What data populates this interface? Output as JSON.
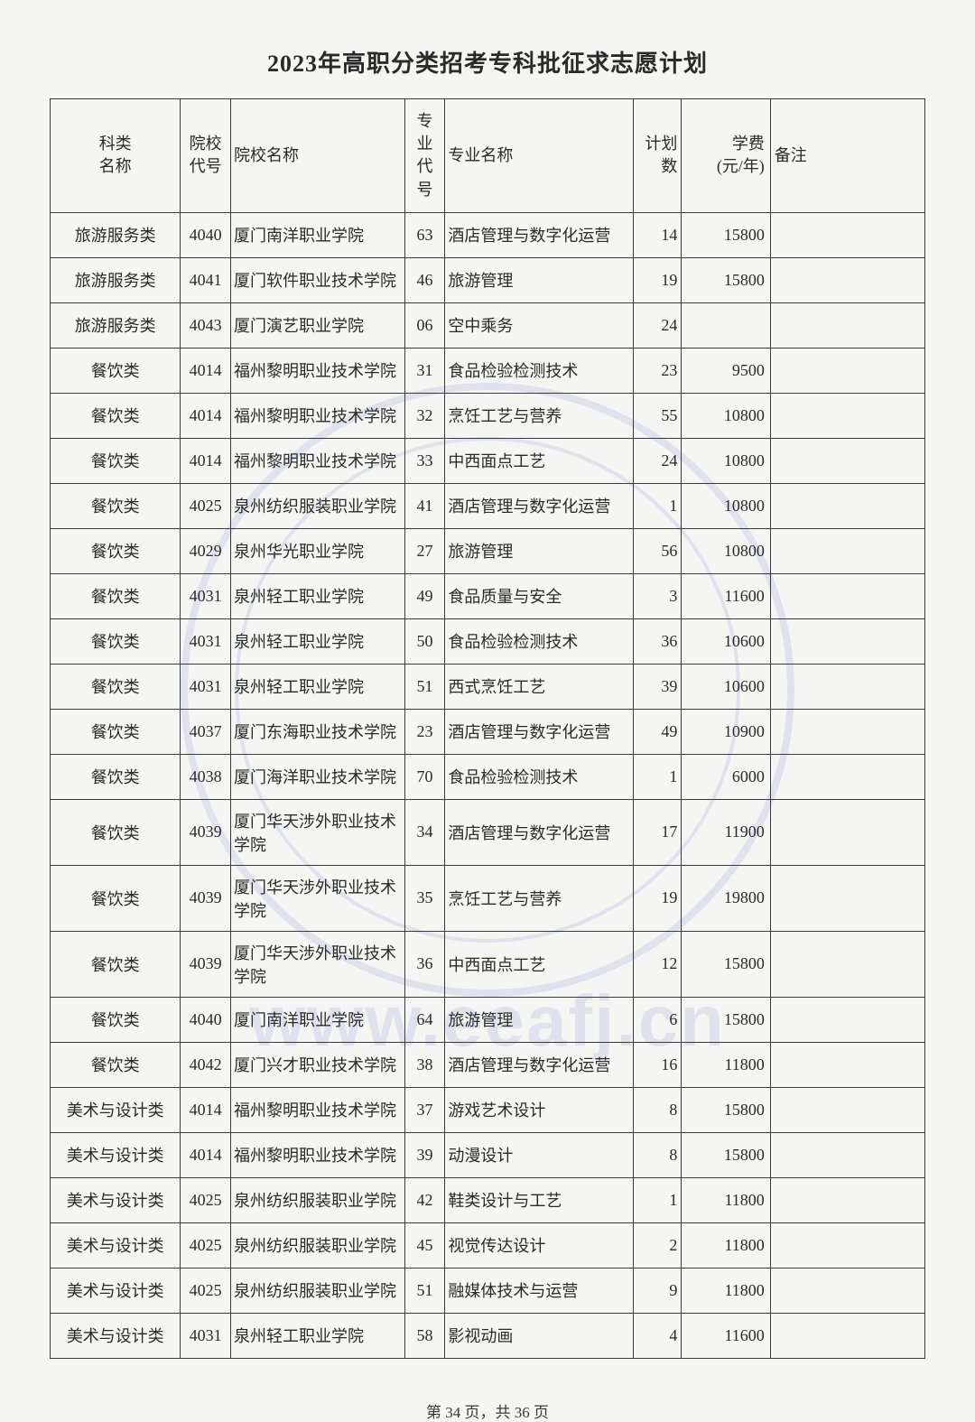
{
  "title": "2023年高职分类招考专科批征求志愿计划",
  "headers": {
    "category": "科类\n名称",
    "schoolCode": "院校\n代号",
    "schoolName": "院校名称",
    "majorCode": "专业\n代号",
    "majorName": "专业名称",
    "plan": "计划\n数",
    "fee": "学费\n(元/年)",
    "remark": "备注"
  },
  "rows": [
    {
      "category": "旅游服务类",
      "schoolCode": "4040",
      "schoolName": "厦门南洋职业学院",
      "majorCode": "63",
      "majorName": "酒店管理与数字化运营",
      "plan": "14",
      "fee": "15800",
      "remark": ""
    },
    {
      "category": "旅游服务类",
      "schoolCode": "4041",
      "schoolName": "厦门软件职业技术学院",
      "majorCode": "46",
      "majorName": "旅游管理",
      "plan": "19",
      "fee": "15800",
      "remark": ""
    },
    {
      "category": "旅游服务类",
      "schoolCode": "4043",
      "schoolName": "厦门演艺职业学院",
      "majorCode": "06",
      "majorName": "空中乘务",
      "plan": "24",
      "fee": "",
      "remark": ""
    },
    {
      "category": "餐饮类",
      "schoolCode": "4014",
      "schoolName": "福州黎明职业技术学院",
      "majorCode": "31",
      "majorName": "食品检验检测技术",
      "plan": "23",
      "fee": "9500",
      "remark": ""
    },
    {
      "category": "餐饮类",
      "schoolCode": "4014",
      "schoolName": "福州黎明职业技术学院",
      "majorCode": "32",
      "majorName": "烹饪工艺与营养",
      "plan": "55",
      "fee": "10800",
      "remark": ""
    },
    {
      "category": "餐饮类",
      "schoolCode": "4014",
      "schoolName": "福州黎明职业技术学院",
      "majorCode": "33",
      "majorName": "中西面点工艺",
      "plan": "24",
      "fee": "10800",
      "remark": ""
    },
    {
      "category": "餐饮类",
      "schoolCode": "4025",
      "schoolName": "泉州纺织服装职业学院",
      "majorCode": "41",
      "majorName": "酒店管理与数字化运营",
      "plan": "1",
      "fee": "10800",
      "remark": ""
    },
    {
      "category": "餐饮类",
      "schoolCode": "4029",
      "schoolName": "泉州华光职业学院",
      "majorCode": "27",
      "majorName": "旅游管理",
      "plan": "56",
      "fee": "10800",
      "remark": ""
    },
    {
      "category": "餐饮类",
      "schoolCode": "4031",
      "schoolName": "泉州轻工职业学院",
      "majorCode": "49",
      "majorName": "食品质量与安全",
      "plan": "3",
      "fee": "11600",
      "remark": ""
    },
    {
      "category": "餐饮类",
      "schoolCode": "4031",
      "schoolName": "泉州轻工职业学院",
      "majorCode": "50",
      "majorName": "食品检验检测技术",
      "plan": "36",
      "fee": "10600",
      "remark": ""
    },
    {
      "category": "餐饮类",
      "schoolCode": "4031",
      "schoolName": "泉州轻工职业学院",
      "majorCode": "51",
      "majorName": "西式烹饪工艺",
      "plan": "39",
      "fee": "10600",
      "remark": ""
    },
    {
      "category": "餐饮类",
      "schoolCode": "4037",
      "schoolName": "厦门东海职业技术学院",
      "majorCode": "23",
      "majorName": "酒店管理与数字化运营",
      "plan": "49",
      "fee": "10900",
      "remark": ""
    },
    {
      "category": "餐饮类",
      "schoolCode": "4038",
      "schoolName": "厦门海洋职业技术学院",
      "majorCode": "70",
      "majorName": "食品检验检测技术",
      "plan": "1",
      "fee": "6000",
      "remark": ""
    },
    {
      "category": "餐饮类",
      "schoolCode": "4039",
      "schoolName": "厦门华天涉外职业技术学院",
      "majorCode": "34",
      "majorName": "酒店管理与数字化运营",
      "plan": "17",
      "fee": "11900",
      "remark": ""
    },
    {
      "category": "餐饮类",
      "schoolCode": "4039",
      "schoolName": "厦门华天涉外职业技术学院",
      "majorCode": "35",
      "majorName": "烹饪工艺与营养",
      "plan": "19",
      "fee": "19800",
      "remark": ""
    },
    {
      "category": "餐饮类",
      "schoolCode": "4039",
      "schoolName": "厦门华天涉外职业技术学院",
      "majorCode": "36",
      "majorName": "中西面点工艺",
      "plan": "12",
      "fee": "15800",
      "remark": ""
    },
    {
      "category": "餐饮类",
      "schoolCode": "4040",
      "schoolName": "厦门南洋职业学院",
      "majorCode": "64",
      "majorName": "旅游管理",
      "plan": "6",
      "fee": "15800",
      "remark": ""
    },
    {
      "category": "餐饮类",
      "schoolCode": "4042",
      "schoolName": "厦门兴才职业技术学院",
      "majorCode": "38",
      "majorName": "酒店管理与数字化运营",
      "plan": "16",
      "fee": "11800",
      "remark": ""
    },
    {
      "category": "美术与设计类",
      "schoolCode": "4014",
      "schoolName": "福州黎明职业技术学院",
      "majorCode": "37",
      "majorName": "游戏艺术设计",
      "plan": "8",
      "fee": "15800",
      "remark": ""
    },
    {
      "category": "美术与设计类",
      "schoolCode": "4014",
      "schoolName": "福州黎明职业技术学院",
      "majorCode": "39",
      "majorName": "动漫设计",
      "plan": "8",
      "fee": "15800",
      "remark": ""
    },
    {
      "category": "美术与设计类",
      "schoolCode": "4025",
      "schoolName": "泉州纺织服装职业学院",
      "majorCode": "42",
      "majorName": "鞋类设计与工艺",
      "plan": "1",
      "fee": "11800",
      "remark": ""
    },
    {
      "category": "美术与设计类",
      "schoolCode": "4025",
      "schoolName": "泉州纺织服装职业学院",
      "majorCode": "45",
      "majorName": "视觉传达设计",
      "plan": "2",
      "fee": "11800",
      "remark": ""
    },
    {
      "category": "美术与设计类",
      "schoolCode": "4025",
      "schoolName": "泉州纺织服装职业学院",
      "majorCode": "51",
      "majorName": "融媒体技术与运营",
      "plan": "9",
      "fee": "11800",
      "remark": ""
    },
    {
      "category": "美术与设计类",
      "schoolCode": "4031",
      "schoolName": "泉州轻工职业学院",
      "majorCode": "58",
      "majorName": "影视动画",
      "plan": "4",
      "fee": "11600",
      "remark": ""
    }
  ],
  "footer": {
    "pageCurrent": "34",
    "pageTotal": "36",
    "prefix": "第 ",
    "middle": " 页，共 ",
    "suffix": " 页"
  }
}
